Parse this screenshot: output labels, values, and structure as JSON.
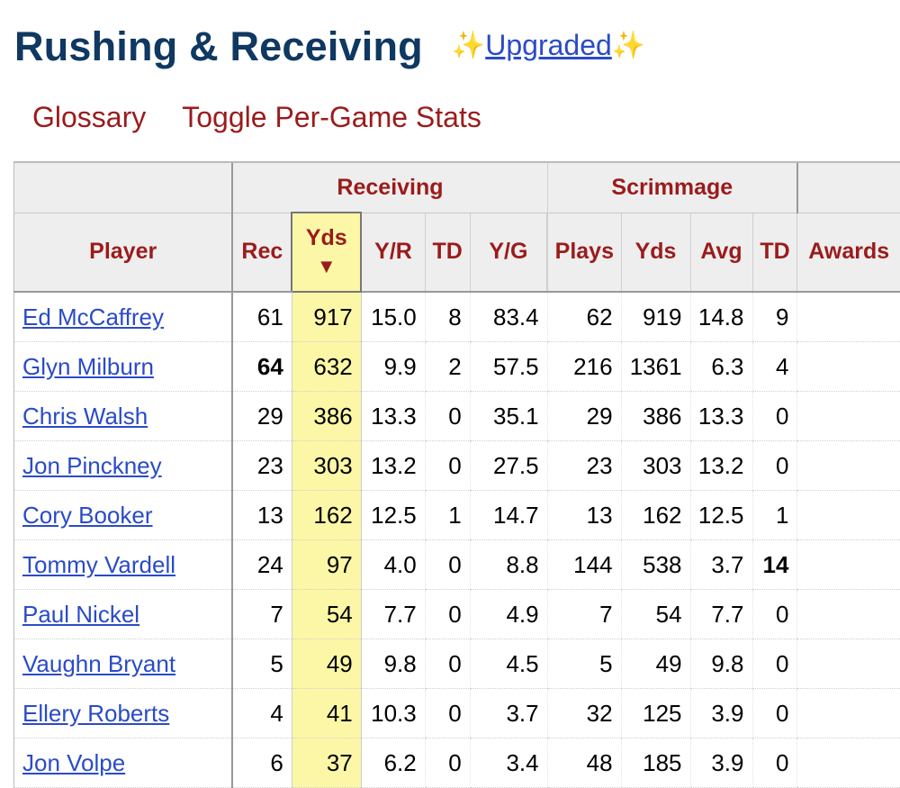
{
  "header": {
    "title": "Rushing & Receiving",
    "sparkle_left": "✨",
    "upgraded_label": "Upgraded",
    "sparkle_right": "✨"
  },
  "links": {
    "glossary": "Glossary",
    "toggle": "Toggle Per-Game Stats"
  },
  "table": {
    "groups": {
      "receiving": "Receiving",
      "scrimmage": "Scrimmage"
    },
    "columns": {
      "player": "Player",
      "rec": "Rec",
      "yds": "Yds",
      "sort_arrow": "▼",
      "yr": "Y/R",
      "td": "TD",
      "yg": "Y/G",
      "plays": "Plays",
      "syds": "Yds",
      "avg": "Avg",
      "std": "TD",
      "awards": "Awards"
    },
    "rows": [
      {
        "player": "Ed McCaffrey",
        "rec": "61",
        "yds": "917",
        "yr": "15.0",
        "td": "8",
        "yg": "83.4",
        "plays": "62",
        "syds": "919",
        "avg": "14.8",
        "std": "9",
        "awards": ""
      },
      {
        "player": "Glyn Milburn",
        "rec": "64",
        "yds": "632",
        "yr": "9.9",
        "td": "2",
        "yg": "57.5",
        "plays": "216",
        "syds": "1361",
        "avg": "6.3",
        "std": "4",
        "awards": ""
      },
      {
        "player": "Chris Walsh",
        "rec": "29",
        "yds": "386",
        "yr": "13.3",
        "td": "0",
        "yg": "35.1",
        "plays": "29",
        "syds": "386",
        "avg": "13.3",
        "std": "0",
        "awards": ""
      },
      {
        "player": "Jon Pinckney",
        "rec": "23",
        "yds": "303",
        "yr": "13.2",
        "td": "0",
        "yg": "27.5",
        "plays": "23",
        "syds": "303",
        "avg": "13.2",
        "std": "0",
        "awards": ""
      },
      {
        "player": "Cory Booker",
        "rec": "13",
        "yds": "162",
        "yr": "12.5",
        "td": "1",
        "yg": "14.7",
        "plays": "13",
        "syds": "162",
        "avg": "12.5",
        "std": "1",
        "awards": ""
      },
      {
        "player": "Tommy Vardell",
        "rec": "24",
        "yds": "97",
        "yr": "4.0",
        "td": "0",
        "yg": "8.8",
        "plays": "144",
        "syds": "538",
        "avg": "3.7",
        "std": "14",
        "awards": ""
      },
      {
        "player": "Paul Nickel",
        "rec": "7",
        "yds": "54",
        "yr": "7.7",
        "td": "0",
        "yg": "4.9",
        "plays": "7",
        "syds": "54",
        "avg": "7.7",
        "std": "0",
        "awards": ""
      },
      {
        "player": "Vaughn Bryant",
        "rec": "5",
        "yds": "49",
        "yr": "9.8",
        "td": "0",
        "yg": "4.5",
        "plays": "5",
        "syds": "49",
        "avg": "9.8",
        "std": "0",
        "awards": ""
      },
      {
        "player": "Ellery Roberts",
        "rec": "4",
        "yds": "41",
        "yr": "10.3",
        "td": "0",
        "yg": "3.7",
        "plays": "32",
        "syds": "125",
        "avg": "3.9",
        "std": "0",
        "awards": ""
      },
      {
        "player": "Jon Volpe",
        "rec": "6",
        "yds": "37",
        "yr": "6.2",
        "td": "0",
        "yg": "3.4",
        "plays": "48",
        "syds": "185",
        "avg": "3.9",
        "std": "0",
        "awards": ""
      }
    ]
  }
}
